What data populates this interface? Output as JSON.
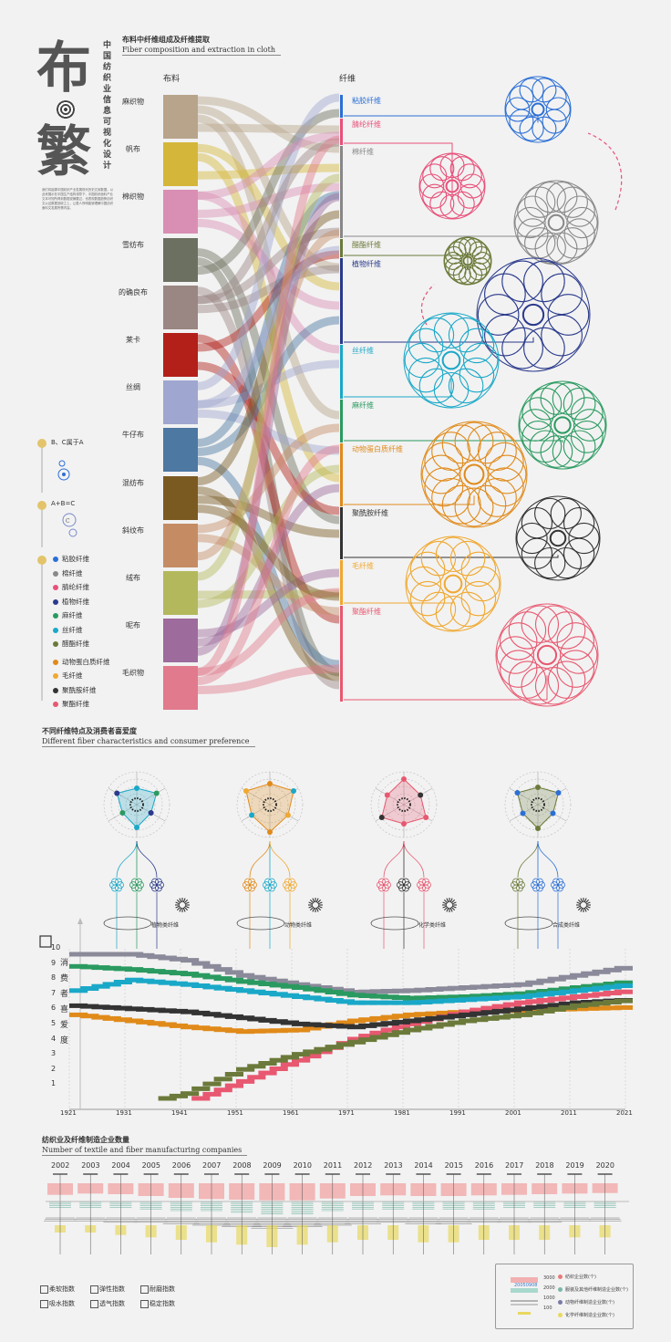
{
  "title": {
    "big_1": "布",
    "big_2": "繁",
    "vertical": "中国纺织业信息可视化设计",
    "intro": "我们将起源中国纺织产业发展现代历史达到数据。以此来展示在中国生产结构领导下，中国纺织面料产业文本可知所得到数据说摘要过，也表现数据趋势纺织文以证数据回收之上，让更人所明能够理解中国纺织面料文发展所需内容。"
  },
  "section1": {
    "zh": "布料中纤维组成及纤维提取",
    "en": "Fiber composition and extraction in cloth",
    "fabric_head": "布料",
    "fiber_head": "纤维"
  },
  "fabrics": [
    {
      "label": "麻织物",
      "color": "#b8a48a"
    },
    {
      "label": "帆布",
      "color": "#d4b73a"
    },
    {
      "label": "棉织物",
      "color": "#d98fb3"
    },
    {
      "label": "雪纺布",
      "color": "#6c7060"
    },
    {
      "label": "的确良布",
      "color": "#9a8682"
    },
    {
      "label": "莱卡",
      "color": "#b22019"
    },
    {
      "label": "丝绸",
      "color": "#9fa6cf"
    },
    {
      "label": "牛仔布",
      "color": "#4c78a2"
    },
    {
      "label": "混纺布",
      "color": "#7b5a22"
    },
    {
      "label": "斜纹布",
      "color": "#c58c63"
    },
    {
      "label": "绒布",
      "color": "#b3b85c"
    },
    {
      "label": "呢布",
      "color": "#9d6b9c"
    },
    {
      "label": "毛织物",
      "color": "#e07a8c"
    }
  ],
  "fibers": [
    {
      "label": "粘胶纤维",
      "color": "#2b6fd6"
    },
    {
      "label": "腈纶纤维",
      "color": "#e8507a"
    },
    {
      "label": "棉纤维",
      "color": "#888888"
    },
    {
      "label": "醋酯纤维",
      "color": "#6b7a3a"
    },
    {
      "label": "植物纤维",
      "color": "#2a3a8c"
    },
    {
      "label": "丝纤维",
      "color": "#1aa8c8"
    },
    {
      "label": "麻纤维",
      "color": "#2a9a60"
    },
    {
      "label": "动物蛋白质纤维",
      "color": "#e08a1a"
    },
    {
      "label": "聚酰胺纤维",
      "color": "#333333"
    },
    {
      "label": "毛纤维",
      "color": "#f0a830"
    },
    {
      "label": "聚酯纤维",
      "color": "#e85870"
    }
  ],
  "legend": {
    "rule1": "B、C属于A",
    "rule2": "A+B=C",
    "items": [
      {
        "label": "粘胶纤维",
        "color": "#2b6fd6"
      },
      {
        "label": "棉纤维",
        "color": "#888888"
      },
      {
        "label": "腈纶纤维",
        "color": "#e8507a"
      },
      {
        "label": "植物纤维",
        "color": "#2a3a8c"
      },
      {
        "label": "麻纤维",
        "color": "#2a9a60"
      },
      {
        "label": "丝纤维",
        "color": "#1aa8c8"
      },
      {
        "label": "醋酯纤维",
        "color": "#6b7a3a"
      },
      {
        "label": "动物蛋白质纤维",
        "color": "#e08a1a"
      },
      {
        "label": "毛纤维",
        "color": "#f0a830"
      },
      {
        "label": "聚酰胺纤维",
        "color": "#333333"
      },
      {
        "label": "聚酯纤维",
        "color": "#e85870"
      }
    ]
  },
  "section2": {
    "zh": "不同纤维特点及消费者喜爱度",
    "en": "Different fiber characteristics and consumer preference",
    "groups": [
      "植物类纤维",
      "动物类纤维",
      "化学类纤维",
      "合成类纤维"
    ],
    "ylabel": "消费者喜爱度"
  },
  "section3": {
    "zh": "纺织业及纤维制造企业数量",
    "en": "Number of textile and fiber manufacturing companies"
  },
  "index_legend": [
    "柔软指数",
    "弹性指数",
    "耐磨指数",
    "吸水指数",
    "透气指数",
    "稳定指数"
  ],
  "company_legend": {
    "items": [
      {
        "label": "纺织企业数(个)",
        "color": "#e87a7a"
      },
      {
        "label": "服装及其他纤维制造企业数(个)",
        "color": "#7ab8a8"
      },
      {
        "label": "动物纤维制造企业数(个)",
        "color": "#7a7aa8"
      },
      {
        "label": "化学纤维制造企业数(个)",
        "color": "#e8d860"
      }
    ],
    "scale": [
      "3000",
      "2000",
      "1000",
      "100"
    ],
    "sample": "20050908"
  },
  "chart_data": [
    {
      "type": "line",
      "title": "不同纤维特点及消费者喜爱度",
      "xlabel": "",
      "ylabel": "消费者喜爱度",
      "x": [
        1921,
        1931,
        1941,
        1951,
        1961,
        1971,
        1981,
        1991,
        2001,
        2011,
        2021
      ],
      "ylim": [
        0,
        10
      ],
      "yticks": [
        1,
        2,
        3,
        4,
        5,
        6,
        7,
        8,
        9,
        10
      ],
      "series": [
        {
          "name": "棉纤维",
          "color": "#8a8a9a",
          "values": [
            10,
            10,
            9.6,
            8.6,
            8,
            7.5,
            7.6,
            7.8,
            8,
            8.6,
            9.2
          ]
        },
        {
          "name": "麻纤维",
          "color": "#2a9a60",
          "values": [
            9.2,
            9,
            8.7,
            8.2,
            7.8,
            7.3,
            7.1,
            7.2,
            7.4,
            7.8,
            8.2
          ]
        },
        {
          "name": "丝纤维",
          "color": "#1aa8c8",
          "values": [
            7.6,
            8.3,
            8,
            7.6,
            7.2,
            6.8,
            6.8,
            7,
            7.2,
            7.6,
            8
          ]
        },
        {
          "name": "毛纤维",
          "color": "#e08a1a",
          "values": [
            6,
            5.6,
            5.2,
            4.9,
            5,
            5.6,
            6,
            6.2,
            6.3,
            6.4,
            6.5
          ]
        },
        {
          "name": "粘胶纤维",
          "color": "#2b6fd6",
          "values": null
        },
        {
          "name": "聚酯纤维",
          "color": "#e85870",
          "values": [
            0,
            0,
            0.2,
            1.6,
            3,
            4.4,
            5.4,
            6.2,
            6.8,
            7.2,
            7.6
          ]
        },
        {
          "name": "聚酰胺纤维",
          "color": "#333333",
          "values": [
            6.6,
            6.4,
            6.2,
            5.8,
            5.4,
            5.2,
            5.6,
            6,
            6.4,
            6.8,
            7
          ]
        },
        {
          "name": "醋酯纤维",
          "color": "#6b7a3a",
          "values": [
            0,
            0,
            0.8,
            2.4,
            3.4,
            4.2,
            5,
            5.6,
            6,
            6.6,
            7
          ]
        }
      ]
    },
    {
      "type": "bar",
      "title": "纺织业及纤维制造企业数量",
      "categories": [
        "2002",
        "2003",
        "2004",
        "2005",
        "2006",
        "2007",
        "2008",
        "2009",
        "2010",
        "2011",
        "2012",
        "2013",
        "2014",
        "2015",
        "2016",
        "2017",
        "2018",
        "2019",
        "2020"
      ],
      "series": [
        {
          "name": "纺织企业数(个)",
          "values": [
            1900,
            1700,
            1800,
            2100,
            2400,
            2600,
            2700,
            2800,
            2800,
            2500,
            2100,
            2000,
            2100,
            2100,
            2000,
            1900,
            1800,
            1700,
            1600
          ]
        },
        {
          "name": "服装及其他纤维制造企业数(个)",
          "values": [
            900,
            800,
            900,
            1100,
            1300,
            1500,
            1700,
            1900,
            1800,
            1500,
            1200,
            1100,
            1200,
            1200,
            1100,
            1000,
            900,
            800,
            800
          ]
        },
        {
          "name": "动物纤维制造企业数(个)",
          "values": [
            400,
            400,
            500,
            600,
            700,
            900,
            1000,
            1100,
            1000,
            800,
            700,
            600,
            700,
            700,
            600,
            500,
            500,
            400,
            400
          ]
        },
        {
          "name": "化学纤维制造企业数(个)",
          "values": [
            300,
            300,
            400,
            500,
            600,
            700,
            800,
            900,
            800,
            700,
            600,
            600,
            700,
            700,
            600,
            600,
            600,
            500,
            500
          ]
        }
      ]
    }
  ]
}
